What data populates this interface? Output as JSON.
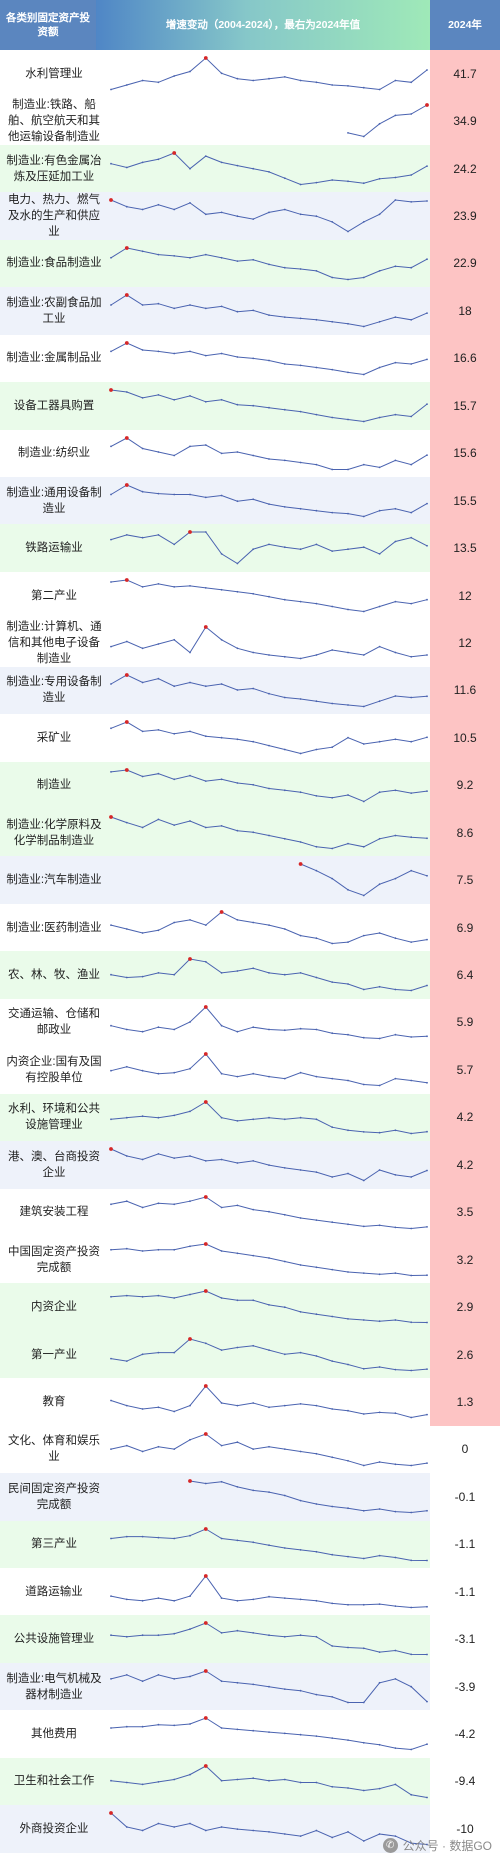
{
  "header": {
    "category": "各类别固定资产投资额",
    "trend": "增速变动（2004-2024），最右为2024年值",
    "value": "2024年"
  },
  "watermark": {
    "text": "公众号 · 数据GO",
    "icon": "wechat-icon"
  },
  "colors": {
    "line": "#4a63b0",
    "peak_marker": "#d62728",
    "positive_value_bg": "#fdc4c4",
    "row_band_green": "#eafbea",
    "row_band_blue": "#eef2fa"
  },
  "chart_data": {
    "type": "table",
    "years": [
      2004,
      2005,
      2006,
      2007,
      2008,
      2009,
      2010,
      2011,
      2012,
      2013,
      2014,
      2015,
      2016,
      2017,
      2018,
      2019,
      2020,
      2021,
      2022,
      2023,
      2024
    ],
    "rows": [
      {
        "name": "水利管理业",
        "value": "41.7",
        "band": "white",
        "series": [
          20,
          25,
          30,
          28,
          35,
          40,
          55,
          38,
          32,
          30,
          32,
          34,
          30,
          28,
          25,
          24,
          22,
          20,
          30,
          28,
          41.7
        ]
      },
      {
        "name": "制造业:铁路、船舶、航空航天和其他运输设备制造业",
        "value": "34.9",
        "band": "white",
        "series": [
          null,
          null,
          null,
          null,
          null,
          null,
          null,
          null,
          null,
          null,
          null,
          null,
          null,
          null,
          null,
          -5,
          -10,
          8,
          20,
          22,
          34.9
        ]
      },
      {
        "name": "制造业:有色金属冶炼及压延加工业",
        "value": "24.2",
        "band": "green",
        "series": [
          28,
          22,
          30,
          35,
          45,
          20,
          40,
          30,
          25,
          20,
          15,
          5,
          -5,
          -2,
          2,
          0,
          -3,
          4,
          6,
          10,
          24.2
        ]
      },
      {
        "name": "电力、热力、燃气及水的生产和供应业",
        "value": "23.9",
        "band": "blue",
        "series": [
          25,
          18,
          15,
          20,
          15,
          22,
          10,
          12,
          8,
          5,
          12,
          15,
          10,
          8,
          2,
          -8,
          2,
          10,
          25,
          23,
          23.9
        ]
      },
      {
        "name": "制造业:食品制造业",
        "value": "22.9",
        "band": "green",
        "series": [
          25,
          40,
          35,
          30,
          28,
          25,
          30,
          25,
          20,
          22,
          15,
          10,
          8,
          5,
          -5,
          -8,
          -5,
          5,
          12,
          10,
          22.9
        ]
      },
      {
        "name": "制造业:农副食品加工业",
        "value": "18",
        "band": "blue",
        "series": [
          30,
          45,
          30,
          32,
          25,
          30,
          25,
          28,
          20,
          22,
          15,
          12,
          10,
          8,
          5,
          2,
          -2,
          5,
          12,
          8,
          18
        ]
      },
      {
        "name": "制造业:金属制品业",
        "value": "16.6",
        "band": "white",
        "series": [
          28,
          40,
          30,
          28,
          25,
          28,
          22,
          25,
          20,
          18,
          15,
          10,
          8,
          5,
          2,
          -2,
          -5,
          5,
          12,
          10,
          16.6
        ]
      },
      {
        "name": "设备工器具购置",
        "value": "15.7",
        "band": "green",
        "series": [
          30,
          28,
          22,
          25,
          20,
          24,
          18,
          20,
          15,
          14,
          12,
          10,
          8,
          5,
          2,
          0,
          -2,
          2,
          5,
          3,
          15.7
        ]
      },
      {
        "name": "制造业:纺织业",
        "value": "15.6",
        "band": "white",
        "series": [
          28,
          40,
          25,
          20,
          15,
          28,
          30,
          18,
          20,
          15,
          10,
          8,
          5,
          2,
          -5,
          -5,
          2,
          -2,
          8,
          2,
          15.6
        ]
      },
      {
        "name": "制造业:通用设备制造业",
        "value": "15.5",
        "band": "blue",
        "series": [
          25,
          35,
          28,
          26,
          25,
          25,
          22,
          24,
          18,
          20,
          15,
          12,
          10,
          8,
          6,
          5,
          2,
          8,
          10,
          6,
          15.5
        ]
      },
      {
        "name": "铁路运输业",
        "value": "13.5",
        "band": "green",
        "series": [
          20,
          25,
          22,
          25,
          15,
          28,
          28,
          5,
          -5,
          10,
          15,
          12,
          10,
          15,
          8,
          10,
          12,
          5,
          18,
          22,
          13.5
        ]
      },
      {
        "name": "第二产业",
        "value": "12",
        "band": "white",
        "series": [
          30,
          32,
          25,
          28,
          25,
          26,
          24,
          22,
          20,
          18,
          15,
          12,
          10,
          8,
          5,
          2,
          0,
          5,
          10,
          8,
          12
        ]
      },
      {
        "name": "制造业:计算机、通信和其他电子设备制造业",
        "value": "12",
        "band": "white",
        "series": [
          22,
          28,
          20,
          25,
          30,
          15,
          45,
          30,
          20,
          15,
          12,
          10,
          8,
          12,
          18,
          15,
          12,
          22,
          15,
          10,
          12
        ]
      },
      {
        "name": "制造业:专用设备制造业",
        "value": "11.6",
        "band": "blue",
        "series": [
          28,
          40,
          30,
          35,
          25,
          30,
          25,
          28,
          20,
          22,
          15,
          10,
          8,
          5,
          2,
          0,
          -2,
          5,
          12,
          10,
          11.6
        ]
      },
      {
        "name": "采矿业",
        "value": "10.5",
        "band": "white",
        "series": [
          22,
          30,
          18,
          20,
          15,
          18,
          12,
          10,
          8,
          5,
          0,
          -5,
          -10,
          -5,
          -2,
          10,
          2,
          5,
          8,
          5,
          10.5
        ]
      },
      {
        "name": "制造业",
        "value": "9.2",
        "band": "green",
        "series": [
          30,
          32,
          25,
          28,
          22,
          26,
          20,
          22,
          18,
          16,
          12,
          10,
          8,
          4,
          2,
          5,
          -2,
          8,
          10,
          7,
          9.2
        ]
      },
      {
        "name": "制造业:化学原料及化学制品制造业",
        "value": "8.6",
        "band": "green",
        "series": [
          35,
          28,
          22,
          32,
          25,
          30,
          22,
          24,
          18,
          16,
          12,
          8,
          4,
          -2,
          -4,
          2,
          -2,
          8,
          12,
          10,
          8.6
        ]
      },
      {
        "name": "制造业:汽车制造业",
        "value": "7.5",
        "band": "blue",
        "series": [
          null,
          null,
          null,
          null,
          null,
          null,
          null,
          null,
          null,
          null,
          null,
          null,
          18,
          12,
          5,
          -5,
          -10,
          0,
          5,
          12,
          7.5
        ]
      },
      {
        "name": "制造业:医药制造业",
        "value": "6.9",
        "band": "white",
        "series": [
          18,
          15,
          12,
          14,
          20,
          22,
          18,
          28,
          22,
          20,
          18,
          15,
          10,
          8,
          4,
          5,
          10,
          12,
          8,
          5,
          6.9
        ]
      },
      {
        "name": "农、林、牧、渔业",
        "value": "6.4",
        "band": "green",
        "series": [
          18,
          15,
          16,
          20,
          18,
          35,
          32,
          20,
          22,
          25,
          20,
          18,
          20,
          15,
          10,
          8,
          2,
          5,
          2,
          1,
          6.4
        ]
      },
      {
        "name": "交通运输、仓储和邮政业",
        "value": "5.9",
        "band": "white",
        "series": [
          20,
          15,
          12,
          18,
          15,
          25,
          45,
          20,
          12,
          18,
          15,
          14,
          16,
          15,
          10,
          8,
          4,
          3,
          8,
          5,
          5.9
        ]
      },
      {
        "name": "内资企业:国有及国有控股单位",
        "value": "5.7",
        "band": "white",
        "series": [
          18,
          22,
          18,
          15,
          16,
          20,
          35,
          15,
          12,
          15,
          12,
          10,
          16,
          12,
          10,
          8,
          4,
          3,
          10,
          8,
          5.7
        ]
      },
      {
        "name": "水利、环境和公共设施管理业",
        "value": "4.2",
        "band": "green",
        "series": [
          20,
          22,
          24,
          22,
          25,
          30,
          42,
          22,
          18,
          20,
          22,
          20,
          22,
          20,
          10,
          6,
          4,
          3,
          6,
          2,
          4.2
        ]
      },
      {
        "name": "港、澳、台商投资企业",
        "value": "4.2",
        "band": "blue",
        "series": [
          35,
          25,
          20,
          28,
          22,
          25,
          18,
          20,
          15,
          18,
          12,
          8,
          5,
          2,
          -5,
          0,
          -10,
          5,
          -2,
          -5,
          4.2
        ]
      },
      {
        "name": "建筑安装工程",
        "value": "3.5",
        "band": "white",
        "series": [
          25,
          28,
          22,
          26,
          25,
          28,
          32,
          22,
          24,
          20,
          18,
          15,
          12,
          10,
          8,
          6,
          4,
          5,
          3,
          2,
          3.5
        ]
      },
      {
        "name": "中国固定资产投资完成额",
        "value": "3.2",
        "band": "white",
        "series": [
          25,
          26,
          24,
          25,
          25,
          28,
          30,
          24,
          22,
          20,
          18,
          15,
          12,
          10,
          8,
          6,
          5,
          4,
          5,
          3,
          3.2
        ]
      },
      {
        "name": "内资企业",
        "value": "2.9",
        "band": "green",
        "series": [
          25,
          26,
          25,
          26,
          24,
          27,
          30,
          24,
          22,
          22,
          18,
          16,
          12,
          10,
          8,
          6,
          5,
          4,
          5,
          3,
          2.9
        ]
      },
      {
        "name": "第一产业",
        "value": "2.6",
        "band": "green",
        "series": [
          15,
          12,
          20,
          22,
          22,
          38,
          33,
          25,
          28,
          30,
          25,
          20,
          22,
          18,
          12,
          8,
          3,
          5,
          2,
          1,
          2.6
        ]
      },
      {
        "name": "教育",
        "value": "1.3",
        "band": "white",
        "series": [
          18,
          12,
          8,
          10,
          5,
          12,
          35,
          15,
          12,
          15,
          10,
          12,
          14,
          12,
          8,
          6,
          2,
          4,
          3,
          -2,
          1.3
        ]
      },
      {
        "name": "文化、体育和娱乐业",
        "value": "0",
        "band": "white",
        "series": [
          12,
          15,
          10,
          14,
          12,
          20,
          25,
          15,
          18,
          12,
          14,
          12,
          10,
          8,
          5,
          2,
          -2,
          1,
          -1,
          -2,
          0
        ]
      },
      {
        "name": "民间固定资产投资完成额",
        "value": "-0.1",
        "band": "blue",
        "series": [
          null,
          null,
          null,
          null,
          null,
          35,
          32,
          34,
          28,
          24,
          22,
          18,
          12,
          8,
          5,
          3,
          0,
          2,
          -1,
          -2,
          -0.1
        ]
      },
      {
        "name": "第三产业",
        "value": "-1.1",
        "band": "green",
        "series": [
          22,
          24,
          24,
          23,
          22,
          25,
          32,
          22,
          20,
          18,
          15,
          12,
          10,
          8,
          5,
          3,
          1,
          4,
          2,
          -1,
          -1.1
        ]
      },
      {
        "name": "道路运输业",
        "value": "-1.1",
        "band": "white",
        "series": [
          15,
          10,
          8,
          12,
          8,
          15,
          45,
          12,
          8,
          10,
          14,
          12,
          10,
          8,
          4,
          2,
          2,
          3,
          0,
          -2,
          -1.1
        ]
      },
      {
        "name": "公共设施管理业",
        "value": "-3.1",
        "band": "green",
        "series": [
          22,
          20,
          22,
          22,
          24,
          30,
          38,
          25,
          28,
          25,
          22,
          20,
          22,
          20,
          8,
          6,
          5,
          0,
          2,
          -3,
          -3.1
        ]
      },
      {
        "name": "制造业:电气机械及器材制造业",
        "value": "-3.9",
        "band": "blue",
        "series": [
          25,
          30,
          22,
          30,
          25,
          28,
          35,
          22,
          20,
          18,
          15,
          12,
          10,
          5,
          2,
          -5,
          -5,
          20,
          25,
          15,
          -3.9
        ]
      },
      {
        "name": "其他费用",
        "value": "-4.2",
        "band": "white",
        "series": [
          20,
          22,
          22,
          25,
          24,
          26,
          35,
          20,
          18,
          16,
          14,
          12,
          10,
          8,
          5,
          2,
          -2,
          -5,
          -10,
          -12,
          -4.2
        ]
      },
      {
        "name": "卫生和社会工作",
        "value": "-9.4",
        "band": "green",
        "series": [
          18,
          15,
          12,
          16,
          20,
          28,
          42,
          18,
          20,
          22,
          18,
          20,
          15,
          15,
          8,
          6,
          2,
          5,
          12,
          -5,
          -9.4
        ]
      },
      {
        "name": "外商投资企业",
        "value": "-10",
        "band": "blue",
        "series": [
          35,
          15,
          10,
          20,
          15,
          20,
          10,
          15,
          12,
          10,
          8,
          5,
          2,
          10,
          0,
          8,
          -5,
          5,
          2,
          -8,
          -10
        ]
      }
    ]
  }
}
